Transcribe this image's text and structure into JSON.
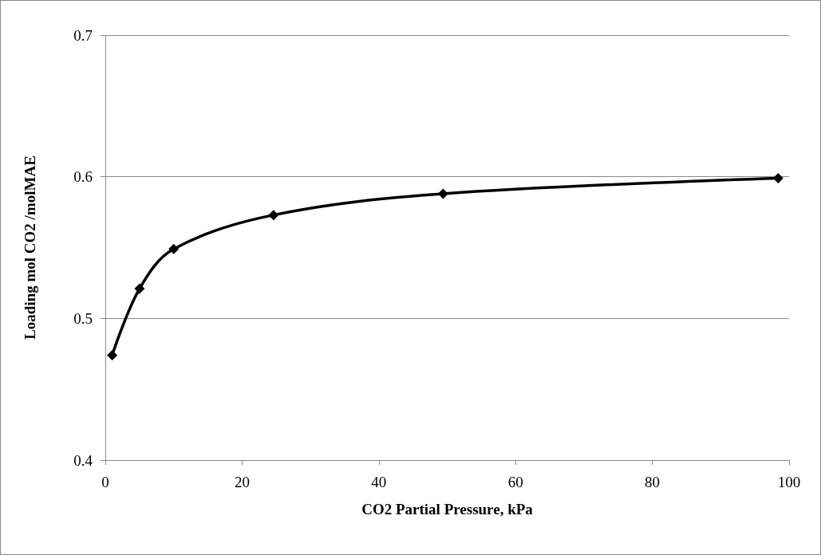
{
  "chart_data": {
    "type": "line",
    "xlabel": "CO2 Partial Pressure, kPa",
    "ylabel": "Loading mol CO2 /molMAE",
    "x": [
      1,
      5,
      10,
      24.6,
      49.4,
      98.4
    ],
    "series": [
      {
        "color": "#000000",
        "values": [
          0.474,
          0.521,
          0.549,
          0.573,
          0.588,
          0.599
        ]
      }
    ],
    "xlim": [
      0,
      100
    ],
    "xticks": [
      0,
      20,
      40,
      60,
      80,
      100
    ],
    "ylim": [
      0.4,
      0.7
    ],
    "yticks": [
      0.4,
      0.5,
      0.6,
      0.7
    ],
    "grid": "y",
    "marker": "diamond",
    "line_style": "solid"
  }
}
